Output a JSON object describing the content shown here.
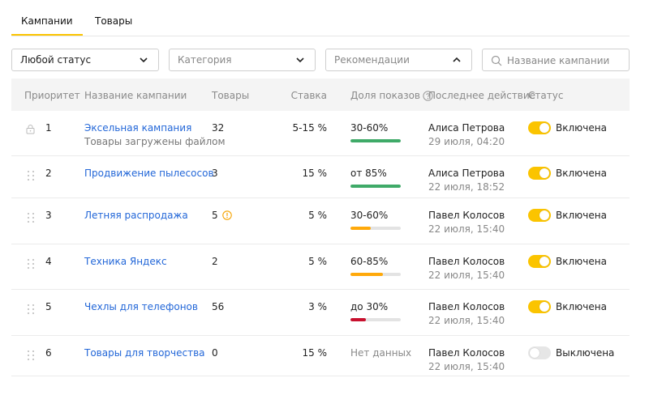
{
  "tabs": [
    {
      "label": "Кампании",
      "active": true
    },
    {
      "label": "Товары",
      "active": false
    }
  ],
  "filters": {
    "status": {
      "value": "Любой статус",
      "icon": "chevron-down-icon"
    },
    "category": {
      "placeholder": "Категория",
      "icon": "chevron-down-icon"
    },
    "recommendations": {
      "placeholder": "Рекомендации",
      "icon": "chevron-up-icon"
    },
    "search": {
      "placeholder": "Название кампании",
      "icon": "search-icon"
    }
  },
  "columns": {
    "priority": "Приоритет",
    "name": "Название кампании",
    "goods": "Товары",
    "rate": "Ставка",
    "share": "Доля показов",
    "last_action": "Последнее действие",
    "status": "Статус"
  },
  "colors": {
    "accent": "#fbc400",
    "link": "#2367d8",
    "bar_green": "#3faa68",
    "bar_orange": "#ffa90a",
    "bar_red": "#c8102e",
    "bar_track": "#e3e3e3"
  },
  "rows": [
    {
      "priority": "1",
      "icon": "lock-icon",
      "name": "Эксельная кампания",
      "subtitle": "Товары загружены файлом",
      "goods": "32",
      "warning": false,
      "rate": "5-15 %",
      "share": "30-60%",
      "share_level": 1.0,
      "share_color": "#3faa68",
      "actor": "Алиса Петрова",
      "date": "29 июля, 04:20",
      "enabled": true,
      "status": "Включена"
    },
    {
      "priority": "2",
      "icon": "drag-handle-icon",
      "name": "Продвижение пылесосов",
      "subtitle": "",
      "goods": "3",
      "warning": false,
      "rate": "15 %",
      "share": "от 85%",
      "share_level": 1.0,
      "share_color": "#3faa68",
      "actor": "Алиса Петрова",
      "date": "22 июля, 18:52",
      "enabled": true,
      "status": "Включена"
    },
    {
      "priority": "3",
      "icon": "drag-handle-icon",
      "name": "Летняя распродажа",
      "subtitle": "",
      "goods": "5",
      "warning": true,
      "rate": "5 %",
      "share": "30-60%",
      "share_level": 0.4,
      "share_color": "#ffa90a",
      "actor": "Павел Колосов",
      "date": "22 июля, 15:40",
      "enabled": true,
      "status": "Включена"
    },
    {
      "priority": "4",
      "icon": "drag-handle-icon",
      "name": "Техника Яндекс",
      "subtitle": "",
      "goods": "2",
      "warning": false,
      "rate": "5 %",
      "share": "60-85%",
      "share_level": 0.65,
      "share_color": "#ffa90a",
      "actor": "Павел Колосов",
      "date": "22 июля, 15:40",
      "enabled": true,
      "status": "Включена"
    },
    {
      "priority": "5",
      "icon": "drag-handle-icon",
      "name": "Чехлы для телефонов",
      "subtitle": "",
      "goods": "56",
      "warning": false,
      "rate": "3 %",
      "share": "до 30%",
      "share_level": 0.3,
      "share_color": "#c8102e",
      "actor": "Павел Колосов",
      "date": "22 июля, 15:40",
      "enabled": true,
      "status": "Включена"
    },
    {
      "priority": "6",
      "icon": "drag-handle-icon",
      "name": "Товары для творчества",
      "subtitle": "",
      "goods": "0",
      "warning": false,
      "rate": "15 %",
      "share": "Нет данных",
      "share_level": null,
      "share_color": null,
      "actor": "Павел Колосов",
      "date": "22 июля, 15:40",
      "enabled": false,
      "status": "Выключена"
    }
  ]
}
